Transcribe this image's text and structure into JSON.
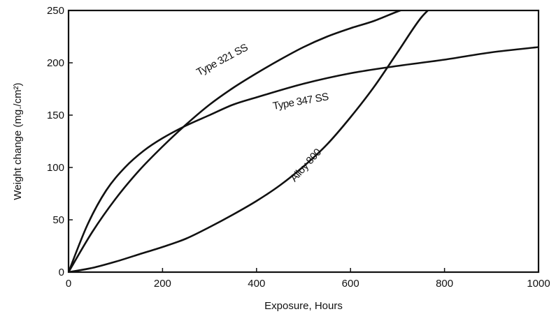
{
  "chart_data": {
    "type": "line",
    "title": "",
    "xlabel": "Exposure, Hours",
    "ylabel": "Weight change (mg./cm²)",
    "xlim": [
      0,
      1000
    ],
    "ylim": [
      0,
      250
    ],
    "x_ticks": [
      0,
      200,
      400,
      600,
      800,
      1000
    ],
    "y_ticks": [
      0,
      50,
      100,
      150,
      200,
      250
    ],
    "grid": false,
    "legend": "none",
    "line_color": "#111111",
    "series": [
      {
        "name": "Type 321 SS",
        "x": [
          0,
          50,
          100,
          150,
          200,
          250,
          300,
          350,
          400,
          450,
          500,
          550,
          600,
          650,
          700,
          740
        ],
        "y": [
          0,
          38,
          70,
          97,
          120,
          141,
          160,
          176,
          190,
          203,
          215,
          225,
          233,
          240,
          249,
          255
        ]
      },
      {
        "name": "Type 347 SS",
        "x": [
          0,
          40,
          80,
          120,
          160,
          200,
          250,
          300,
          350,
          400,
          500,
          600,
          700,
          800,
          900,
          1000
        ],
        "y": [
          0,
          45,
          78,
          100,
          116,
          128,
          140,
          150,
          160,
          167,
          180,
          190,
          197,
          203,
          210,
          215
        ]
      },
      {
        "name": "Alloy 800",
        "x": [
          0,
          50,
          100,
          150,
          200,
          250,
          300,
          350,
          400,
          450,
          500,
          550,
          600,
          650,
          700,
          750,
          790
        ],
        "y": [
          0,
          4,
          10,
          17,
          24,
          32,
          43,
          55,
          68,
          83,
          101,
          122,
          148,
          177,
          210,
          243,
          260
        ]
      }
    ],
    "annotations": [
      {
        "text": "Type 321 SS",
        "x": 330,
        "y": 200,
        "angle": -28
      },
      {
        "text": "Type 347 SS",
        "x": 495,
        "y": 160,
        "angle": -10
      },
      {
        "text": "Alloy 800",
        "x": 510,
        "y": 100,
        "angle": -48
      }
    ]
  }
}
